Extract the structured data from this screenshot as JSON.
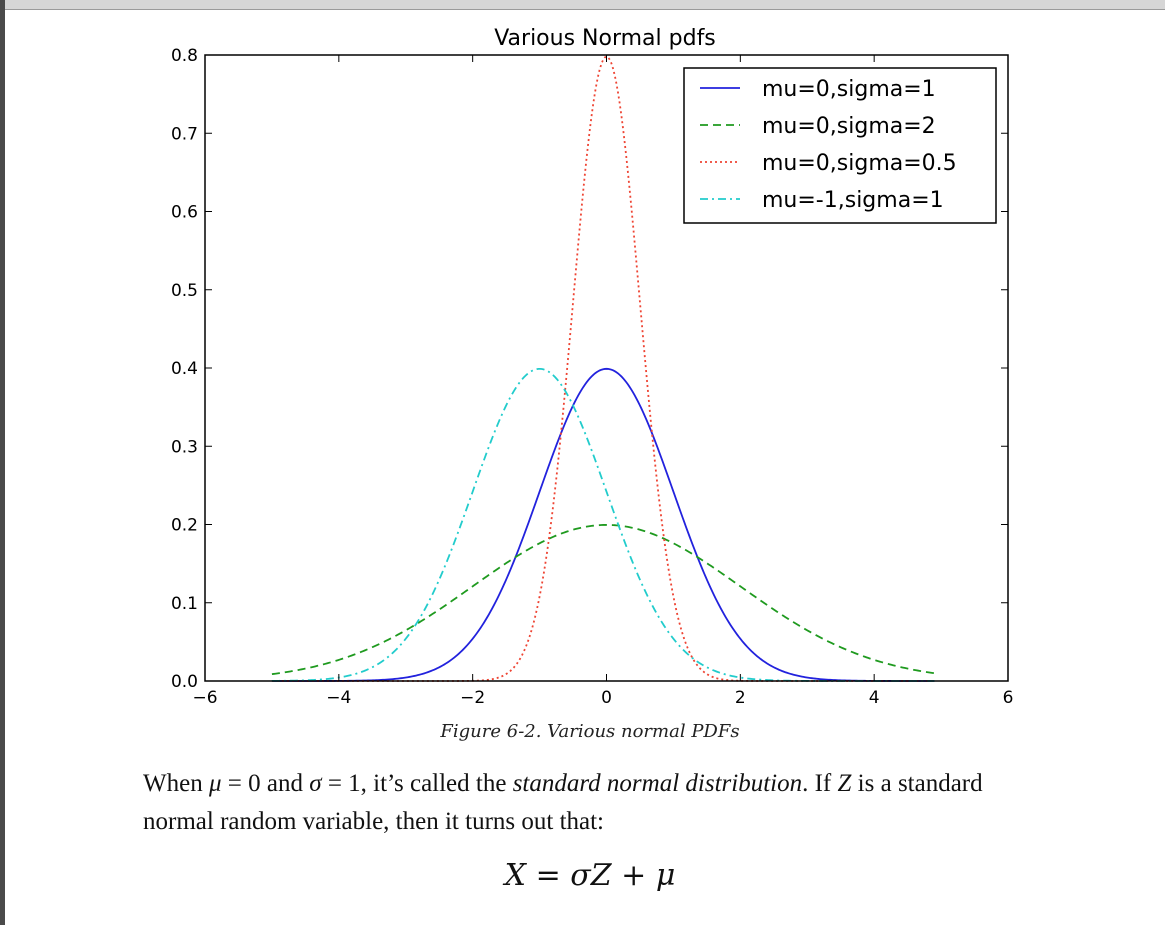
{
  "chart_data": {
    "type": "line",
    "title": "Various Normal pdfs",
    "xlabel": "",
    "ylabel": "",
    "xlim": [
      -6,
      6
    ],
    "ylim": [
      0,
      0.8
    ],
    "xticks": [
      -6,
      -4,
      -2,
      0,
      2,
      4,
      6
    ],
    "xtick_labels": [
      "−6",
      "−4",
      "−2",
      "0",
      "2",
      "4",
      "6"
    ],
    "yticks": [
      0.0,
      0.1,
      0.2,
      0.3,
      0.4,
      0.5,
      0.6,
      0.7,
      0.8
    ],
    "ytick_labels": [
      "0.0",
      "0.1",
      "0.2",
      "0.3",
      "0.4",
      "0.5",
      "0.6",
      "0.7",
      "0.8"
    ],
    "x_range": [
      -5,
      4.9
    ],
    "legend_position": "top-right",
    "grid": false,
    "series": [
      {
        "name": "mu=0,sigma=1",
        "mu": 0,
        "sigma": 1,
        "color": "#2222dd",
        "style": "solid"
      },
      {
        "name": "mu=0,sigma=2",
        "mu": 0,
        "sigma": 2,
        "color": "#1f9a1f",
        "style": "dashed"
      },
      {
        "name": "mu=0,sigma=0.5",
        "mu": 0,
        "sigma": 0.5,
        "color": "#ee4433",
        "style": "dotted"
      },
      {
        "name": "mu=-1,sigma=1",
        "mu": -1,
        "sigma": 1,
        "color": "#22cccc",
        "style": "dashdot"
      }
    ]
  },
  "caption": "Figure 6-2. Various normal PDFs",
  "paragraph": {
    "part1": "When ",
    "mu_symbol": "μ",
    "part2": " = 0 and ",
    "sigma_symbol": "σ",
    "part3": " = 1, it’s called the ",
    "emph": "standard normal distribution",
    "part4": ". If ",
    "z_symbol": "Z",
    "part5": " is a standard normal random variable, then it turns out that:"
  },
  "formula": {
    "lhs": "X",
    "eq": " = ",
    "sigma": "σ",
    "z": "Z",
    "plus": " + ",
    "mu": "μ"
  }
}
